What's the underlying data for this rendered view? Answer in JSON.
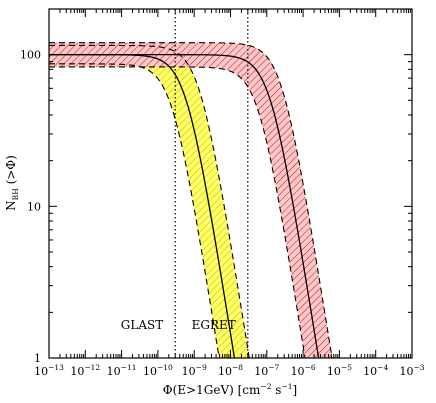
{
  "chart_data": {
    "type": "line",
    "xscale": "log",
    "yscale": "log",
    "xlim": [
      1e-13,
      0.001
    ],
    "ylim": [
      1,
      200
    ],
    "x_tick_exponents": [
      -13,
      -12,
      -11,
      -10,
      -9,
      -8,
      -7,
      -6,
      -5,
      -4,
      -3
    ],
    "y_ticks": [
      {
        "value": 1,
        "label": "1"
      },
      {
        "value": 10,
        "label": "10"
      },
      {
        "value": 100,
        "label": "100"
      }
    ],
    "xlabel": {
      "prefix": "Φ(E>1GeV) [cm",
      "exp1": "−2",
      "mid": " s",
      "exp2": "−1",
      "suffix": "]"
    },
    "ylabel": {
      "main": "N",
      "sub": "BH",
      "tail": " (>Φ)"
    },
    "thresholds": [
      {
        "label": "GLAST",
        "x": 3e-10
      },
      {
        "label": "EGRET",
        "x": 3e-08
      }
    ],
    "series": [
      {
        "color": "#ffff66",
        "hatch_color": "#c9b200",
        "central": {
          "n0": 100,
          "phi_break": 6e-10,
          "slope": 1.5
        },
        "upper": {
          "n0": 115,
          "phi_break": 1.4e-09,
          "slope": 1.5
        },
        "lower": {
          "n0": 87,
          "phi_break": 2.5e-10,
          "slope": 1.5
        }
      },
      {
        "color": "#ffc7c7",
        "hatch_color": "#b01818",
        "central": {
          "n0": 100,
          "phi_break": 1.25e-07,
          "slope": 1.5
        },
        "upper": {
          "n0": 120,
          "phi_break": 2.6e-07,
          "slope": 1.5
        },
        "lower": {
          "n0": 83,
          "phi_break": 6e-08,
          "slope": 1.5
        }
      }
    ]
  }
}
